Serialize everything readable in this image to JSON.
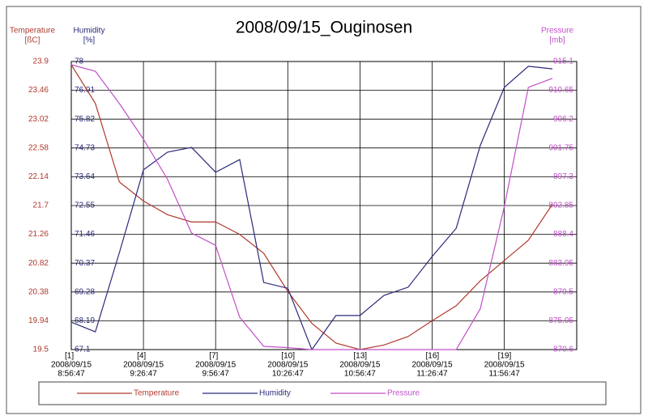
{
  "chart_data": {
    "type": "line",
    "title": "2008/09/15_Ouginosen",
    "y_label": [
      "Temperature",
      "[ßC]"
    ],
    "y2_label": [
      "Humidity",
      "[%]"
    ],
    "y3_label": [
      "Pressure",
      "[mb]"
    ],
    "categories": [
      [
        "[1]",
        "2008/09/15",
        "8:56:47"
      ],
      null,
      null,
      [
        "[4]",
        "2008/09/15",
        "9:26:47"
      ],
      null,
      null,
      [
        "[7]",
        "2008/09/15",
        "9:56:47"
      ],
      null,
      null,
      [
        "[10]",
        "2008/09/15",
        "10:26:47"
      ],
      null,
      null,
      [
        "[13]",
        "2008/09/15",
        "10:56:47"
      ],
      null,
      null,
      [
        "[16]",
        "2008/09/15",
        "11:26:47"
      ],
      null,
      null,
      [
        "[19]",
        "2008/09/15",
        "11:56:47"
      ],
      null,
      null
    ],
    "ylim": [
      19.5,
      23.9
    ],
    "yticks": [
      19.5,
      19.94,
      20.38,
      20.82,
      21.26,
      21.7,
      22.14,
      22.58,
      23.02,
      23.46,
      23.9
    ],
    "y2lim": [
      67.1,
      78
    ],
    "y2ticks": [
      67.1,
      68.19,
      69.28,
      70.37,
      71.46,
      72.55,
      73.64,
      74.73,
      75.82,
      76.91,
      78
    ],
    "y3lim": [
      870.6,
      915.1
    ],
    "y3ticks": [
      870.6,
      875.05,
      879.5,
      883.95,
      888.4,
      892.85,
      897.3,
      901.75,
      906.2,
      910.65,
      915.1
    ],
    "grid": true,
    "series": [
      {
        "name": "Temperature",
        "color": "#b03a2e",
        "axis": "y",
        "values": [
          23.85,
          23.26,
          22.06,
          21.77,
          21.56,
          21.45,
          21.45,
          21.26,
          20.97,
          20.39,
          19.9,
          19.6,
          19.5,
          19.57,
          19.7,
          19.94,
          20.17,
          20.55,
          20.86,
          21.17,
          21.72
        ]
      },
      {
        "name": "Humidity",
        "color": "#2a2a7a",
        "axis": "y2",
        "values": [
          68.14,
          67.77,
          70.77,
          73.9,
          74.57,
          74.75,
          73.81,
          74.29,
          69.64,
          69.42,
          67.1,
          68.39,
          68.39,
          69.15,
          69.46,
          70.62,
          71.69,
          74.82,
          77.02,
          77.82,
          77.72
        ]
      },
      {
        "name": "Pressure",
        "color": "#c050c8",
        "axis": "y3",
        "values": [
          914.6,
          913.6,
          908.6,
          903.1,
          896.9,
          888.6,
          886.7,
          875.6,
          871.1,
          870.9,
          870.6,
          870.6,
          870.6,
          870.6,
          870.6,
          870.6,
          870.6,
          876.9,
          892.7,
          911.1,
          912.5
        ]
      }
    ]
  }
}
